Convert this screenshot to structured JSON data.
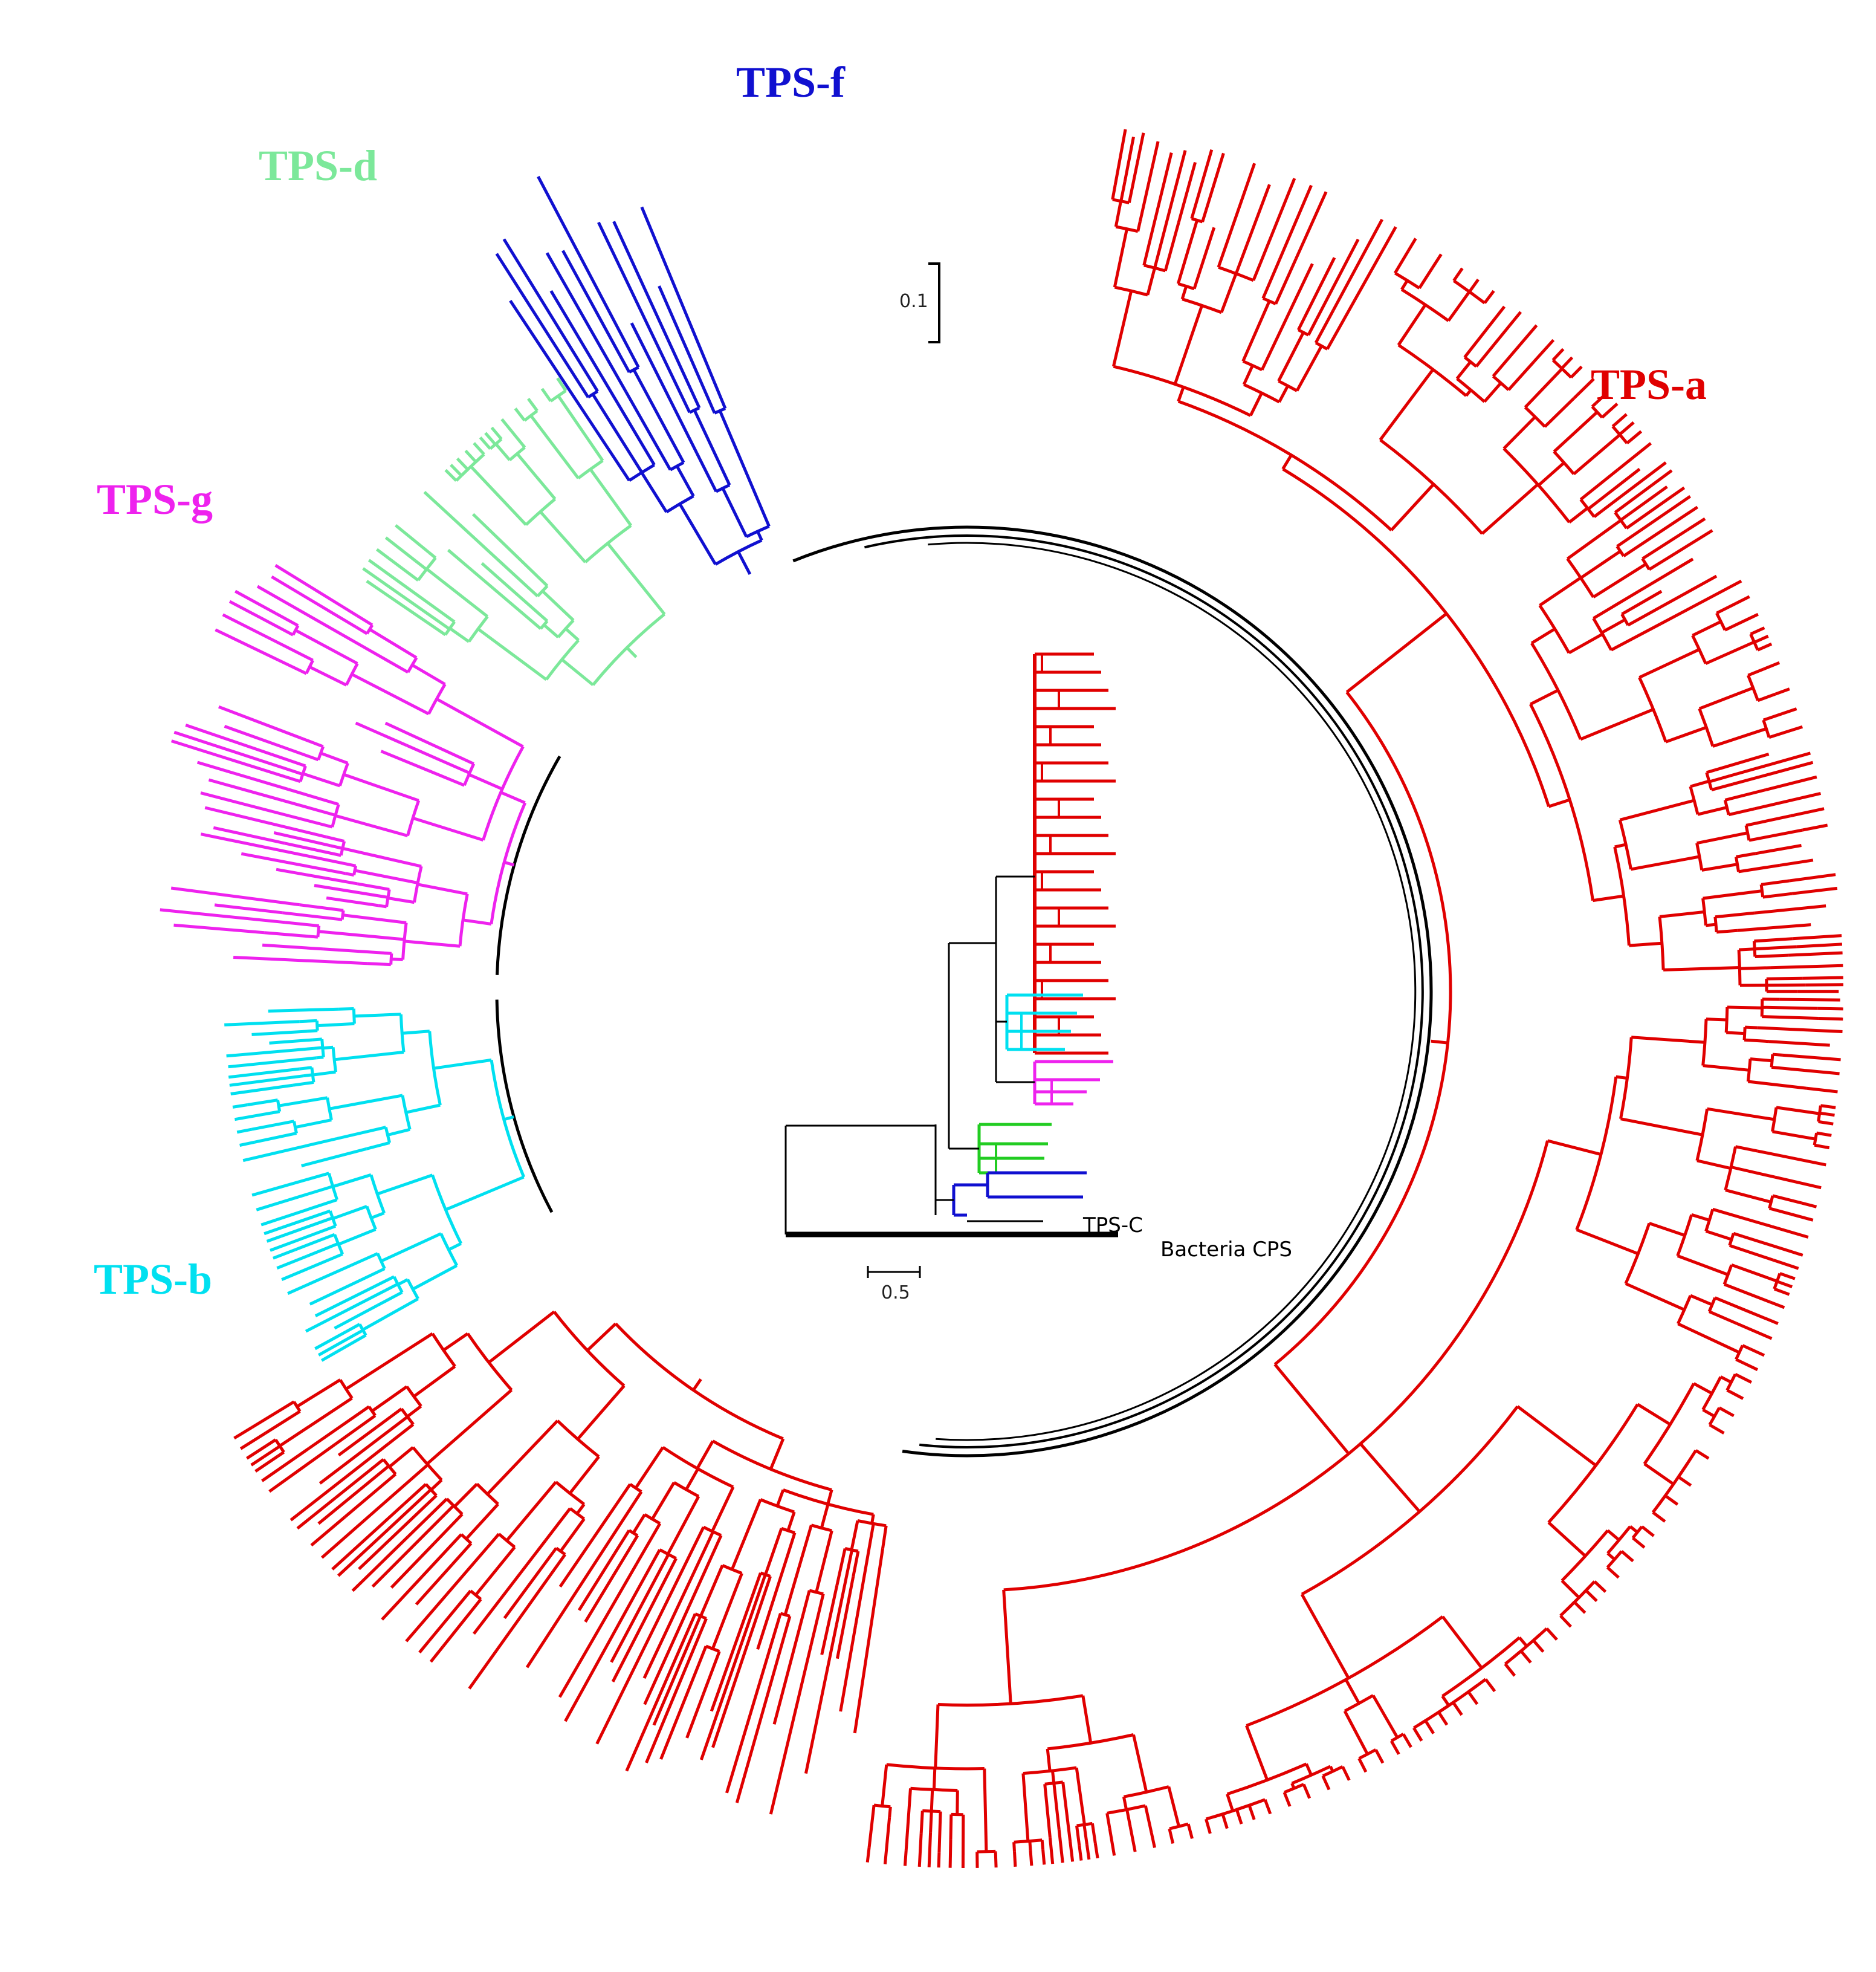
{
  "figure": {
    "clades": [
      {
        "label": "TPS-f",
        "color": "#1010d0"
      },
      {
        "label": "TPS-d",
        "color": "#7ce89a"
      },
      {
        "label": "TPS-g",
        "color": "#ee22ee"
      },
      {
        "label": "TPS-b",
        "color": "#00e0f0"
      },
      {
        "label": "TPS-a",
        "color": "#e00000"
      }
    ],
    "main_tree": {
      "layout": "circular",
      "backbone_color": "#000000",
      "scale_bar": {
        "label": "0.1"
      }
    },
    "inset_tree": {
      "layout": "rectangular",
      "clade_colors": [
        "#e00000",
        "#00e0f0",
        "#ee22ee",
        "#22cc22",
        "#1010d0"
      ],
      "tps_c_label": "TPS-C",
      "outgroup_label": "Bacteria CPS",
      "scale_bar": {
        "label": "0.5"
      }
    }
  }
}
